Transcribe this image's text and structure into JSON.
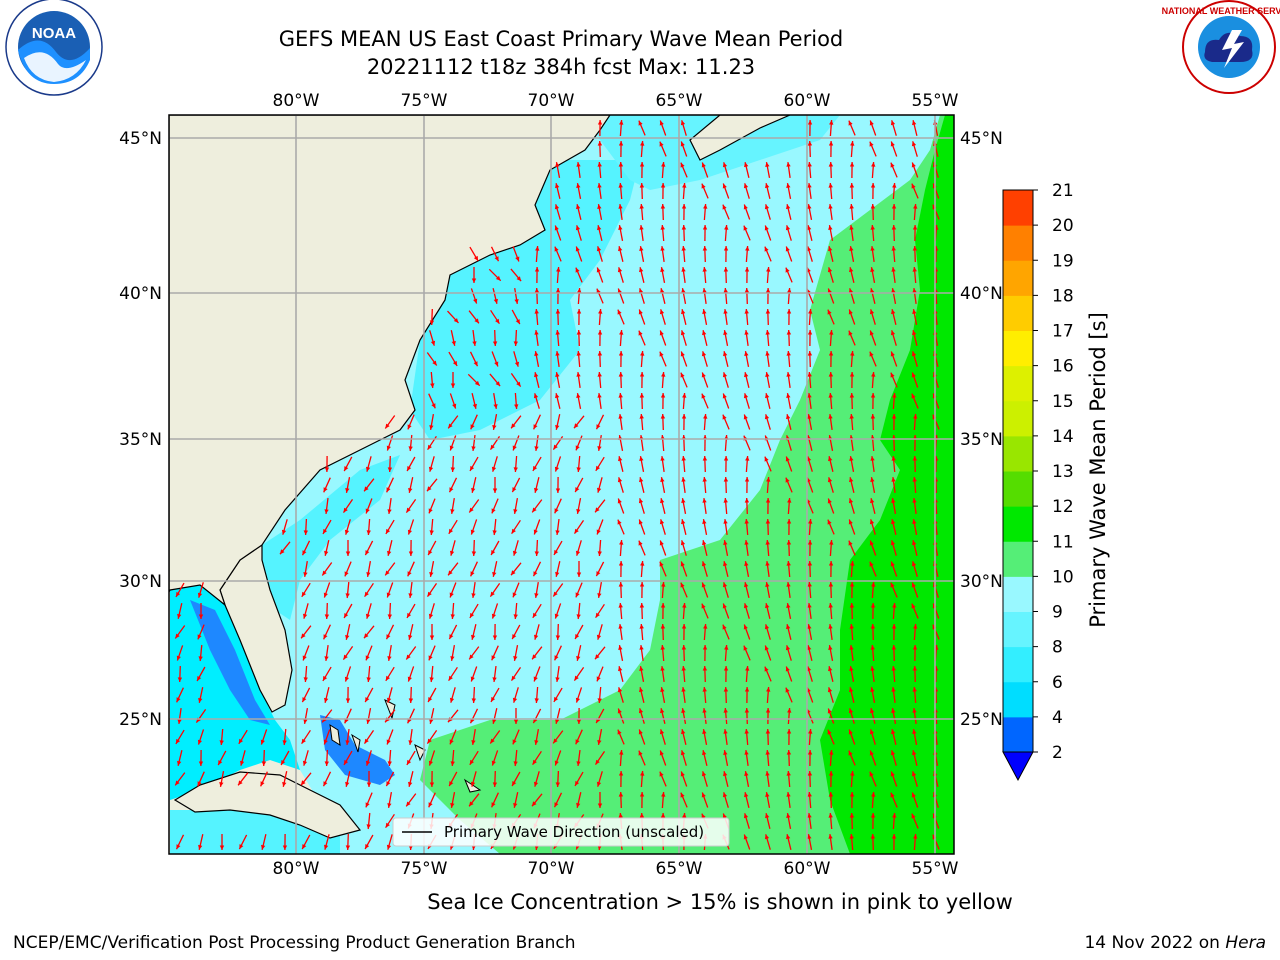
{
  "title": {
    "line1": "GEFS MEAN US East Coast Primary Wave Mean Period",
    "line2": "20221112 t18z 384h fcst   Max: 11.23"
  },
  "subtitle": "Sea Ice Concentration > 15% is shown in pink to yellow",
  "footer": {
    "left": "NCEP/EMC/Verification Post Processing Product Generation Branch",
    "right_date": "14 Nov 2022 on ",
    "right_machine": "Hera"
  },
  "logos": {
    "noaa_text": "NOAA",
    "noaa_ring": "NATIONAL OCEANIC AND ATMOSPHERIC ADMINISTRATION · U.S. DEPARTMENT OF COMMERCE",
    "nws_ring": "NATIONAL WEATHER SERVICE"
  },
  "map": {
    "lon_labels": [
      "80°W",
      "75°W",
      "70°W",
      "65°W",
      "60°W",
      "55°W"
    ],
    "lat_labels": [
      "45°N",
      "40°N",
      "35°N",
      "30°N",
      "25°N"
    ],
    "legend_label": "Primary Wave Direction (unscaled)",
    "vector_color": "#ff0000"
  },
  "colorbar": {
    "label": "Primary Wave Mean Period [s]",
    "ticks": [
      "2",
      "4",
      "6",
      "8",
      "9",
      "10",
      "11",
      "12",
      "13",
      "14",
      "15",
      "16",
      "17",
      "18",
      "19",
      "20",
      "21"
    ],
    "colors": [
      "#0066ff",
      "#00ddff",
      "#33eeff",
      "#66f4ff",
      "#99f8ff",
      "#55ee77",
      "#00e800",
      "#55dd00",
      "#99e600",
      "#ccf000",
      "#ddf000",
      "#ffee00",
      "#ffcc00",
      "#ffa500",
      "#ff8000",
      "#ff4000",
      "#ff1a00",
      "#ff0000"
    ],
    "extend_color": "#0000ff"
  },
  "chart_data": {
    "type": "heatmap",
    "title": "GEFS MEAN US East Coast Primary Wave Mean Period",
    "run": "20221112 t18z",
    "forecast_hour": "384h",
    "max_value": 11.23,
    "units": "s",
    "lon_range": [
      -85,
      -54
    ],
    "lat_range": [
      20,
      46
    ],
    "levels": [
      2,
      4,
      6,
      8,
      9,
      10,
      11,
      12,
      13,
      14,
      15,
      16,
      17,
      18,
      19,
      20,
      21
    ]
  }
}
